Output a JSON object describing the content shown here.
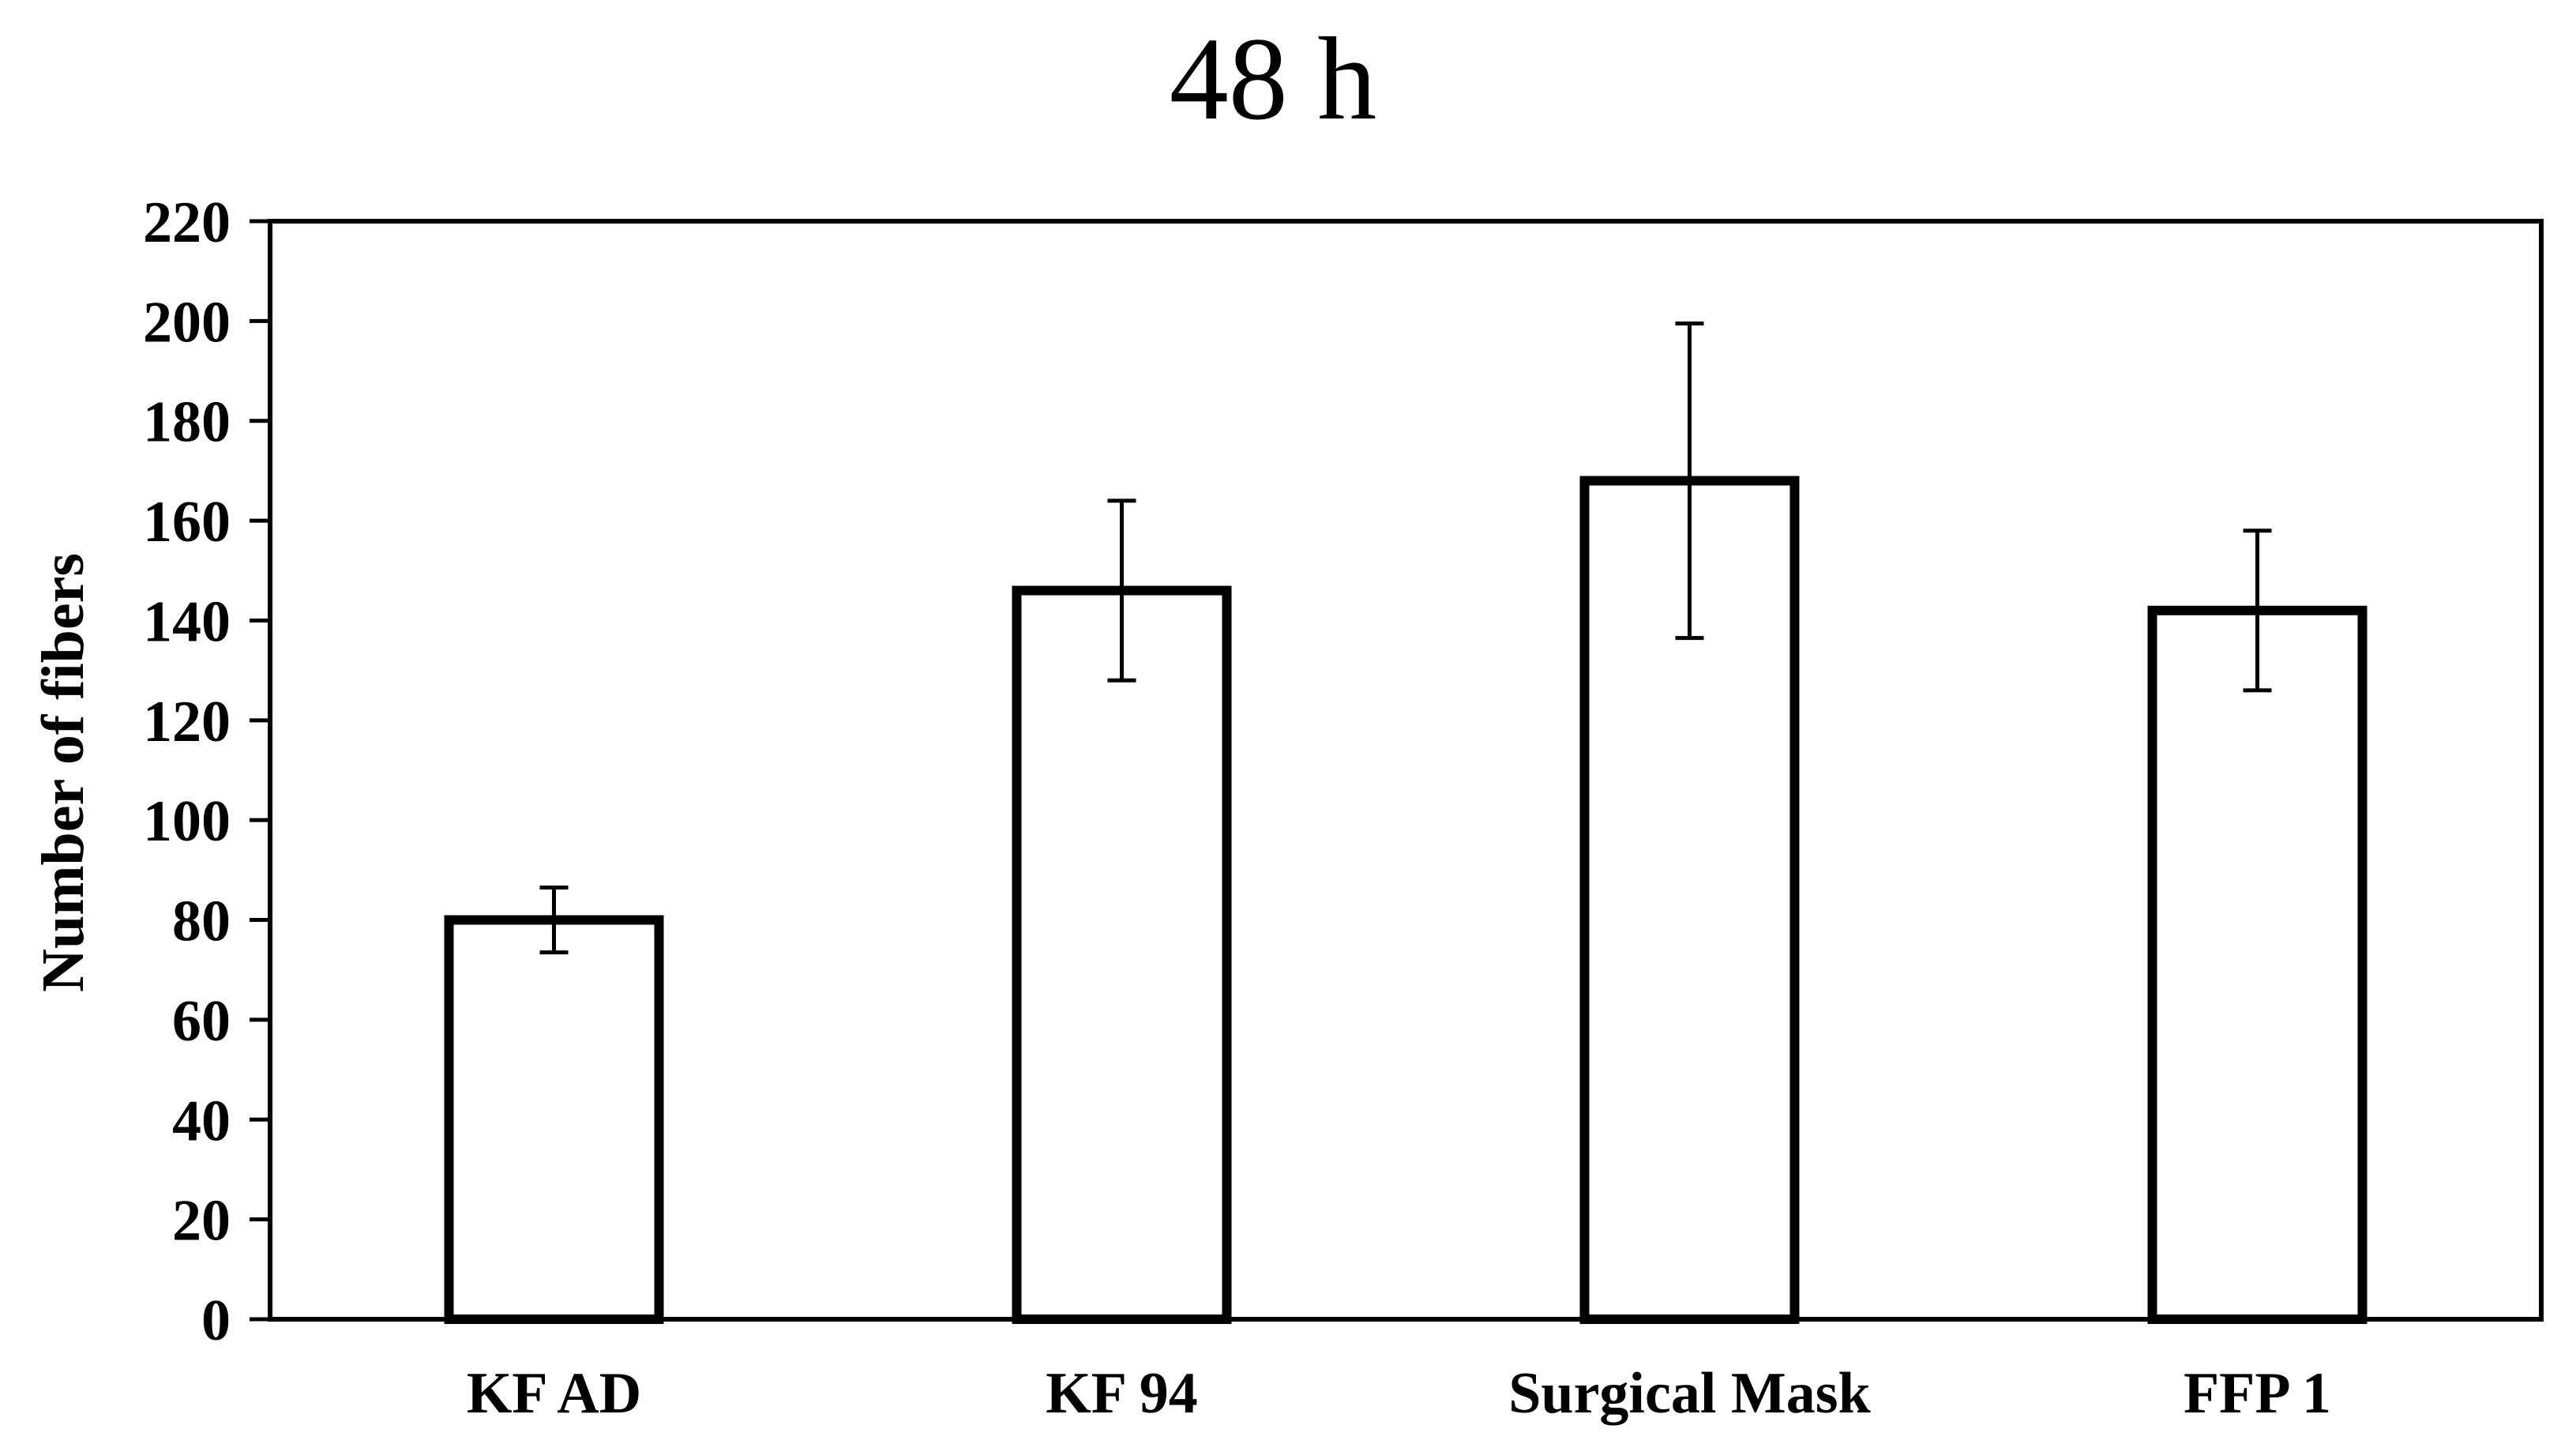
{
  "chart_data": {
    "type": "bar",
    "title": "48 h",
    "xlabel": "",
    "ylabel": "Number of fibers",
    "categories": [
      "KF AD",
      "KF 94",
      "Surgical Mask",
      "FFP 1"
    ],
    "values": [
      80,
      146,
      168,
      142
    ],
    "error": [
      6.5,
      18,
      31.5,
      16
    ],
    "ylim": [
      0,
      220
    ],
    "yticks": [
      "0",
      "20",
      "40",
      "60",
      "80",
      "100",
      "120",
      "140",
      "160",
      "180",
      "200",
      "220"
    ],
    "grid": false,
    "legend": "none",
    "bar_fill": "#ffffff",
    "bar_stroke": "#000000"
  }
}
